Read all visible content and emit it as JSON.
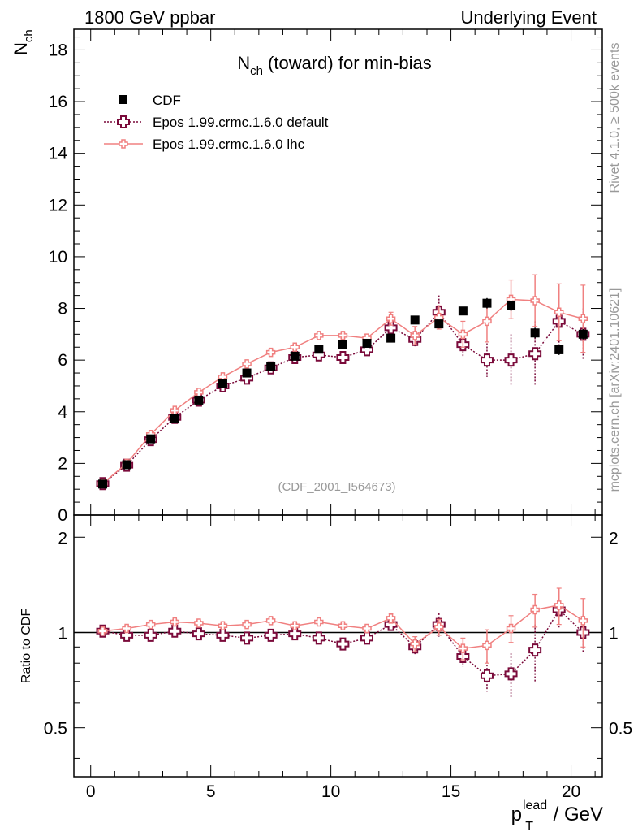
{
  "header": {
    "left": "1800 GeV ppbar",
    "right": "Underlying Event"
  },
  "side_labels": {
    "rivet": "Rivet 4.1.0, ≥ 500k events",
    "mcplots": "mcplots.cern.ch [arXiv:2401.10621]"
  },
  "colors": {
    "data": "#000000",
    "default": "#7a0a3a",
    "lhc": "#f08080",
    "frame": "#000000",
    "watermark": "#999999"
  },
  "chart_data": [
    {
      "type": "scatter",
      "panel": "main",
      "title_main": "N",
      "title_sub": "ch",
      "title_rest": " (toward) for min-bias",
      "ylabel_main": "N",
      "ylabel_sub": "ch",
      "watermark": "(CDF_2001_I564673)",
      "xlim": [
        -0.7,
        21.3
      ],
      "ylim": [
        0,
        18.8
      ],
      "yticks": [
        0,
        2,
        4,
        6,
        8,
        10,
        12,
        14,
        16,
        18
      ],
      "ytick_labels": [
        "0",
        "2",
        "4",
        "6",
        "8",
        "10",
        "12",
        "14",
        "16",
        "18"
      ],
      "x": [
        0.5,
        1.5,
        2.5,
        3.5,
        4.5,
        5.5,
        6.5,
        7.5,
        8.5,
        9.5,
        10.5,
        11.5,
        12.5,
        13.5,
        14.5,
        15.5,
        16.5,
        17.5,
        18.5,
        19.5,
        20.5
      ],
      "legend": [
        {
          "key": "data",
          "label": "CDF"
        },
        {
          "key": "default",
          "label": "Epos 1.99.crmc.1.6.0 default"
        },
        {
          "key": "lhc",
          "label": "Epos 1.99.crmc.1.6.0 lhc"
        }
      ],
      "series": [
        {
          "name": "CDF",
          "key": "data",
          "values": [
            1.2,
            1.95,
            2.95,
            3.75,
            4.45,
            5.1,
            5.5,
            5.75,
            6.15,
            6.42,
            6.6,
            6.65,
            6.85,
            7.55,
            7.4,
            7.9,
            8.2,
            8.1,
            7.05,
            6.4,
            7.0
          ],
          "errors": [
            0.03,
            0.04,
            0.05,
            0.06,
            0.07,
            0.08,
            0.08,
            0.09,
            0.1,
            0.1,
            0.12,
            0.12,
            0.14,
            0.15,
            0.15,
            0.15,
            0.2,
            0.2,
            0.2,
            0.2,
            0.2
          ]
        },
        {
          "name": "Epos 1.99.crmc.1.6.0 default",
          "key": "default",
          "values": [
            1.22,
            1.93,
            2.92,
            3.78,
            4.45,
            5.0,
            5.3,
            5.7,
            6.1,
            6.2,
            6.1,
            6.4,
            7.25,
            6.8,
            7.85,
            6.6,
            6.0,
            6.0,
            6.25,
            7.5,
            7.0
          ],
          "errors": [
            0.03,
            0.04,
            0.05,
            0.05,
            0.06,
            0.07,
            0.08,
            0.09,
            0.1,
            0.12,
            0.15,
            0.2,
            0.25,
            0.3,
            0.65,
            0.5,
            0.65,
            1.0,
            1.25,
            1.0,
            1.0
          ]
        },
        {
          "name": "Epos 1.99.crmc.1.6.0 lhc",
          "key": "lhc",
          "values": [
            1.22,
            2.0,
            3.12,
            4.05,
            4.75,
            5.35,
            5.85,
            6.3,
            6.5,
            6.95,
            6.95,
            6.85,
            7.6,
            6.95,
            7.65,
            7.0,
            7.5,
            8.35,
            8.3,
            7.85,
            7.6
          ],
          "errors": [
            0.03,
            0.04,
            0.05,
            0.06,
            0.07,
            0.08,
            0.08,
            0.09,
            0.1,
            0.11,
            0.12,
            0.15,
            0.25,
            0.35,
            0.45,
            0.5,
            0.8,
            0.75,
            1.0,
            1.1,
            1.3
          ]
        }
      ]
    },
    {
      "type": "scatter",
      "panel": "ratio",
      "ylabel": "Ratio to CDF",
      "xlabel_main": "p",
      "xlabel_sub": "T",
      "xlabel_sup": "lead",
      "xlabel_rest": " / GeV",
      "xlim": [
        -0.7,
        21.3
      ],
      "ylim": [
        0.35,
        2.35
      ],
      "yscale": "log",
      "yticks": [
        0.5,
        1,
        2
      ],
      "ytick_labels": [
        "0.5",
        "1",
        "2"
      ],
      "xticks": [
        0,
        5,
        10,
        15,
        20
      ],
      "xtick_labels": [
        "0",
        "5",
        "10",
        "15",
        "20"
      ],
      "reference": 1,
      "x": [
        0.5,
        1.5,
        2.5,
        3.5,
        4.5,
        5.5,
        6.5,
        7.5,
        8.5,
        9.5,
        10.5,
        11.5,
        12.5,
        13.5,
        14.5,
        15.5,
        16.5,
        17.5,
        18.5,
        19.5,
        20.5
      ],
      "series": [
        {
          "name": "Epos 1.99.crmc.1.6.0 default",
          "key": "default",
          "values": [
            1.01,
            0.98,
            0.98,
            1.01,
            0.99,
            0.98,
            0.96,
            0.98,
            0.99,
            0.96,
            0.92,
            0.96,
            1.06,
            0.9,
            1.06,
            0.84,
            0.73,
            0.74,
            0.88,
            1.18,
            1.0
          ],
          "errors": [
            0.02,
            0.02,
            0.02,
            0.02,
            0.02,
            0.02,
            0.02,
            0.02,
            0.02,
            0.02,
            0.03,
            0.03,
            0.04,
            0.05,
            0.09,
            0.06,
            0.08,
            0.12,
            0.18,
            0.15,
            0.14
          ]
        },
        {
          "name": "Epos 1.99.crmc.1.6.0 lhc",
          "key": "lhc",
          "values": [
            1.01,
            1.03,
            1.06,
            1.08,
            1.07,
            1.05,
            1.06,
            1.09,
            1.05,
            1.08,
            1.05,
            1.03,
            1.11,
            0.92,
            1.04,
            0.89,
            0.91,
            1.03,
            1.18,
            1.22,
            1.09
          ],
          "errors": [
            0.02,
            0.02,
            0.02,
            0.02,
            0.02,
            0.02,
            0.02,
            0.02,
            0.02,
            0.02,
            0.02,
            0.02,
            0.04,
            0.05,
            0.06,
            0.07,
            0.11,
            0.1,
            0.14,
            0.16,
            0.19
          ]
        }
      ]
    }
  ]
}
